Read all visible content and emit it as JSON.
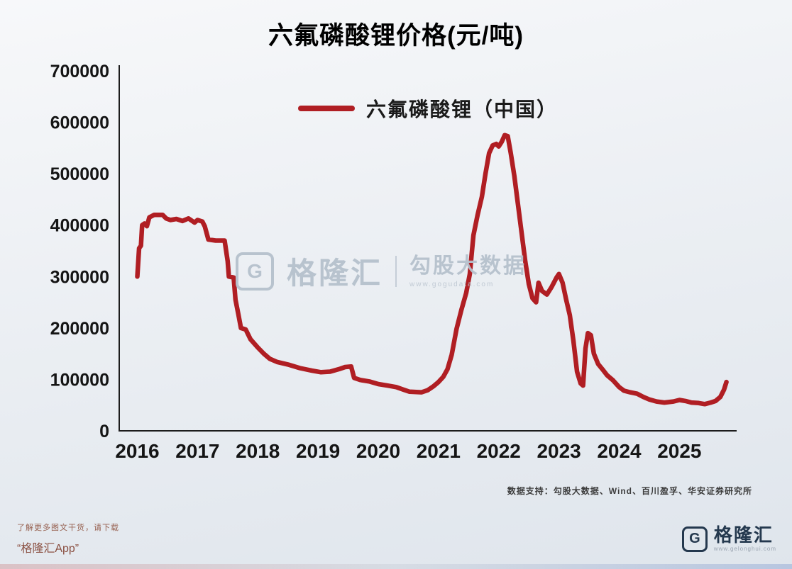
{
  "title": "六氟磷酸锂价格(元/吨)",
  "legend": {
    "label": "六氟磷酸锂（中国）",
    "color": "#b01e23"
  },
  "watermark": {
    "logo_letter": "G",
    "brand": "格隆汇",
    "tagline": "勾股大数据",
    "url": "www.gogudata.com",
    "color": "#b6c1cd"
  },
  "footer": {
    "source": "数据支持：勾股大数据、Wind、百川盈孚、华安证券研究所"
  },
  "bottom_left": {
    "line1": "了解更多图文干货，请下载",
    "line2": "“格隆汇App”"
  },
  "bottom_right": {
    "logo_letter": "G",
    "brand": "格隆汇",
    "url": "www.gelonghui.com",
    "color": "#24384e"
  },
  "chart_data": {
    "type": "line",
    "title": "六氟磷酸锂价格(元/吨)",
    "xlabel": "",
    "ylabel": "",
    "legend_position": "top-center",
    "grid": false,
    "xlim": [
      2015.7,
      2025.95
    ],
    "ylim": [
      0,
      700000
    ],
    "x_ticks": [
      2016,
      2017,
      2018,
      2019,
      2020,
      2021,
      2022,
      2023,
      2024,
      2025
    ],
    "y_ticks": [
      0,
      100000,
      200000,
      300000,
      400000,
      500000,
      600000,
      700000
    ],
    "series": [
      {
        "name": "六氟磷酸锂（中国）",
        "color": "#b01e23",
        "points": [
          [
            2016.0,
            300000
          ],
          [
            2016.03,
            355000
          ],
          [
            2016.06,
            360000
          ],
          [
            2016.08,
            400000
          ],
          [
            2016.12,
            403000
          ],
          [
            2016.16,
            398000
          ],
          [
            2016.2,
            415000
          ],
          [
            2016.28,
            420000
          ],
          [
            2016.42,
            420000
          ],
          [
            2016.48,
            413000
          ],
          [
            2016.55,
            410000
          ],
          [
            2016.65,
            412000
          ],
          [
            2016.75,
            408000
          ],
          [
            2016.85,
            413000
          ],
          [
            2016.95,
            405000
          ],
          [
            2017.0,
            410000
          ],
          [
            2017.08,
            407000
          ],
          [
            2017.12,
            398000
          ],
          [
            2017.18,
            372000
          ],
          [
            2017.3,
            370000
          ],
          [
            2017.45,
            370000
          ],
          [
            2017.5,
            330000
          ],
          [
            2017.52,
            300000
          ],
          [
            2017.6,
            298000
          ],
          [
            2017.63,
            255000
          ],
          [
            2017.68,
            225000
          ],
          [
            2017.72,
            200000
          ],
          [
            2017.8,
            197000
          ],
          [
            2017.88,
            178000
          ],
          [
            2018.0,
            162000
          ],
          [
            2018.1,
            150000
          ],
          [
            2018.2,
            140000
          ],
          [
            2018.32,
            134000
          ],
          [
            2018.5,
            129000
          ],
          [
            2018.7,
            122000
          ],
          [
            2018.9,
            117000
          ],
          [
            2019.05,
            114000
          ],
          [
            2019.2,
            115000
          ],
          [
            2019.35,
            120000
          ],
          [
            2019.45,
            124000
          ],
          [
            2019.55,
            125000
          ],
          [
            2019.6,
            103000
          ],
          [
            2019.7,
            99000
          ],
          [
            2019.85,
            96000
          ],
          [
            2020.0,
            91000
          ],
          [
            2020.15,
            88000
          ],
          [
            2020.3,
            85000
          ],
          [
            2020.42,
            80000
          ],
          [
            2020.52,
            76000
          ],
          [
            2020.72,
            75000
          ],
          [
            2020.82,
            79000
          ],
          [
            2020.92,
            87000
          ],
          [
            2021.0,
            95000
          ],
          [
            2021.08,
            105000
          ],
          [
            2021.15,
            120000
          ],
          [
            2021.22,
            148000
          ],
          [
            2021.3,
            198000
          ],
          [
            2021.38,
            235000
          ],
          [
            2021.46,
            268000
          ],
          [
            2021.52,
            305000
          ],
          [
            2021.58,
            380000
          ],
          [
            2021.65,
            420000
          ],
          [
            2021.72,
            455000
          ],
          [
            2021.78,
            500000
          ],
          [
            2021.84,
            540000
          ],
          [
            2021.9,
            555000
          ],
          [
            2021.96,
            558000
          ],
          [
            2022.0,
            553000
          ],
          [
            2022.05,
            562000
          ],
          [
            2022.1,
            575000
          ],
          [
            2022.15,
            573000
          ],
          [
            2022.2,
            540000
          ],
          [
            2022.26,
            495000
          ],
          [
            2022.32,
            440000
          ],
          [
            2022.38,
            385000
          ],
          [
            2022.44,
            330000
          ],
          [
            2022.5,
            285000
          ],
          [
            2022.56,
            258000
          ],
          [
            2022.62,
            250000
          ],
          [
            2022.66,
            288000
          ],
          [
            2022.72,
            272000
          ],
          [
            2022.8,
            265000
          ],
          [
            2022.88,
            280000
          ],
          [
            2022.96,
            298000
          ],
          [
            2023.0,
            305000
          ],
          [
            2023.06,
            288000
          ],
          [
            2023.12,
            255000
          ],
          [
            2023.18,
            225000
          ],
          [
            2023.24,
            175000
          ],
          [
            2023.3,
            115000
          ],
          [
            2023.36,
            92000
          ],
          [
            2023.4,
            88000
          ],
          [
            2023.44,
            160000
          ],
          [
            2023.48,
            190000
          ],
          [
            2023.53,
            186000
          ],
          [
            2023.58,
            150000
          ],
          [
            2023.65,
            130000
          ],
          [
            2023.72,
            120000
          ],
          [
            2023.8,
            108000
          ],
          [
            2023.9,
            98000
          ],
          [
            2024.0,
            85000
          ],
          [
            2024.08,
            78000
          ],
          [
            2024.18,
            75000
          ],
          [
            2024.3,
            72000
          ],
          [
            2024.4,
            66000
          ],
          [
            2024.5,
            61000
          ],
          [
            2024.62,
            57000
          ],
          [
            2024.75,
            55000
          ],
          [
            2024.9,
            57000
          ],
          [
            2025.0,
            60000
          ],
          [
            2025.1,
            58000
          ],
          [
            2025.2,
            55000
          ],
          [
            2025.32,
            54000
          ],
          [
            2025.42,
            52000
          ],
          [
            2025.52,
            55000
          ],
          [
            2025.6,
            58000
          ],
          [
            2025.68,
            66000
          ],
          [
            2025.74,
            80000
          ],
          [
            2025.78,
            95000
          ]
        ]
      }
    ]
  }
}
